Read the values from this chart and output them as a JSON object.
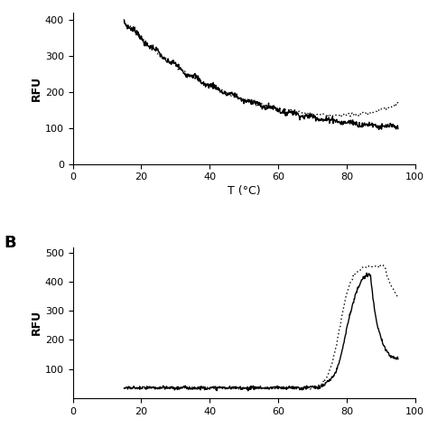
{
  "panel_A": {
    "ylabel": "RFU",
    "xlabel": "T (°C)",
    "xlim": [
      0,
      100
    ],
    "ylim": [
      0,
      420
    ],
    "yticks": [
      0,
      100,
      200,
      300,
      400
    ],
    "xticks": [
      0,
      20,
      40,
      60,
      80,
      100
    ]
  },
  "panel_B": {
    "ylabel": "RFU",
    "xlim": [
      0,
      100
    ],
    "ylim": [
      0,
      520
    ],
    "yticks": [
      100,
      200,
      300,
      400,
      500
    ],
    "xticks": [
      0,
      20,
      40,
      60,
      80,
      100
    ],
    "label": "B"
  },
  "line_color": "#000000",
  "background_color": "#ffffff"
}
